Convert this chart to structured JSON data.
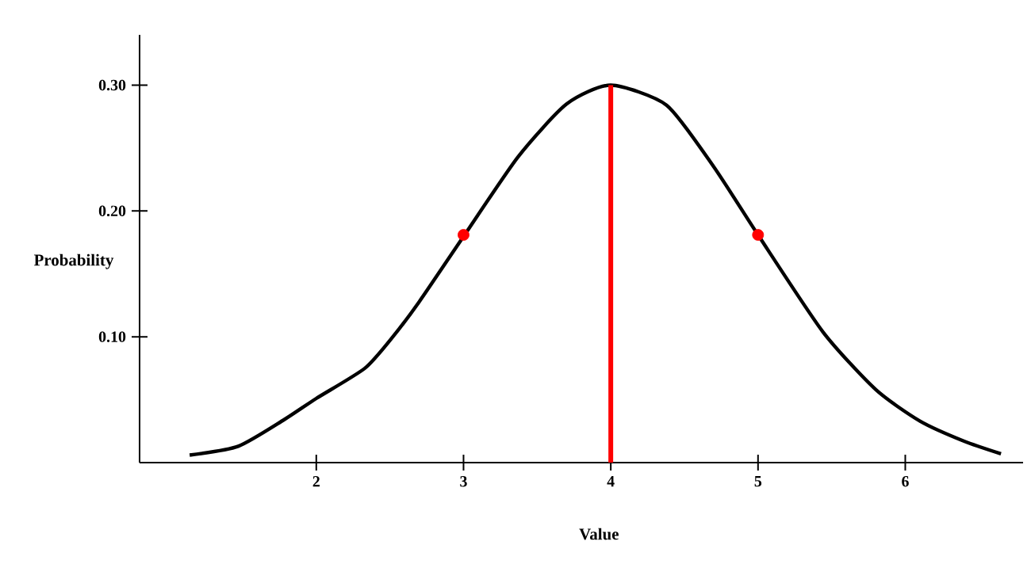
{
  "chart_data": {
    "type": "line",
    "xlabel": "Value",
    "ylabel": "Probability",
    "xlim": [
      0.8,
      6.8
    ],
    "ylim": [
      0,
      0.34
    ],
    "xticks": [
      2,
      3,
      4,
      5,
      6
    ],
    "yticks": [
      {
        "value": 0.1,
        "label": "0.10"
      },
      {
        "value": 0.2,
        "label": "0.20"
      },
      {
        "value": 0.3,
        "label": "0.30"
      }
    ],
    "grid": false,
    "series": [
      {
        "color": "#000000",
        "x": [
          1.14,
          1.47,
          1.78,
          2.0,
          2.33,
          2.52,
          2.7,
          2.99,
          3.37,
          3.7,
          4.0,
          4.38,
          4.7,
          5.0,
          5.44,
          5.8,
          6.1,
          6.4,
          6.65
        ],
        "values": [
          0.006,
          0.013,
          0.034,
          0.051,
          0.075,
          0.1,
          0.128,
          0.178,
          0.243,
          0.285,
          0.3,
          0.284,
          0.235,
          0.181,
          0.104,
          0.058,
          0.033,
          0.017,
          0.007
        ]
      },
      {
        "type": "line",
        "color": "#ff0000",
        "x": [
          4,
          4
        ],
        "values": [
          0,
          0.3
        ]
      },
      {
        "type": "scatter",
        "color": "#ff0000",
        "x": [
          3,
          5
        ],
        "values": [
          0.181,
          0.181
        ]
      }
    ]
  }
}
